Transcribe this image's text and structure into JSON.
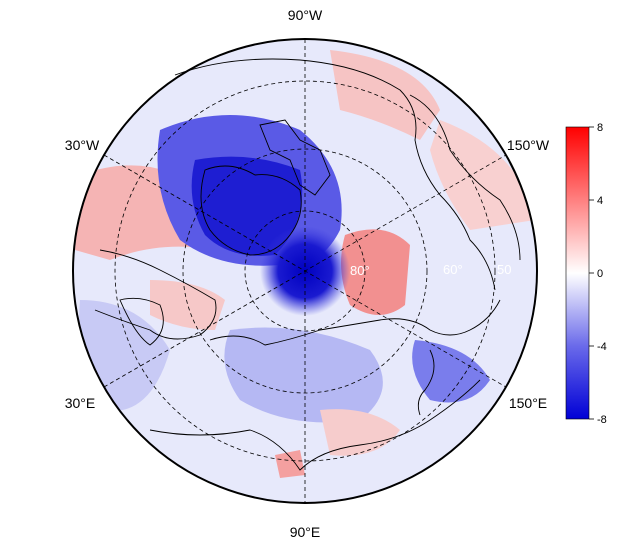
{
  "map": {
    "projection": "north-polar-stereographic",
    "longitude_labels": {
      "top": "90°W",
      "upper_left": "30°W",
      "upper_right": "150°W",
      "lower_left": "30°E",
      "lower_right": "150°E",
      "bottom": "90°E"
    },
    "latitude_labels": [
      "80°",
      "60°",
      "50"
    ],
    "gridlines": "dashed",
    "colormap": [
      "#0000d6",
      "#ffffff",
      "#ff0000"
    ]
  },
  "colorbar": {
    "min": -8,
    "max": 8,
    "ticks": [
      "8",
      "4",
      "0",
      "-4",
      "-8"
    ]
  },
  "anomaly_regions": [
    {
      "name": "greenland-canadian-arctic-negative",
      "value": -7
    },
    {
      "name": "pole-negative",
      "value": -8
    },
    {
      "name": "beaufort-chukchi-positive",
      "value": 5
    },
    {
      "name": "north-pacific-positive",
      "value": 3
    },
    {
      "name": "north-atlantic-positive",
      "value": 4
    },
    {
      "name": "siberia-negative",
      "value": -3
    },
    {
      "name": "east-siberia-negative",
      "value": -5
    },
    {
      "name": "scandinavia-mixed",
      "value": 2
    },
    {
      "name": "central-asia-positive",
      "value": 2
    }
  ]
}
